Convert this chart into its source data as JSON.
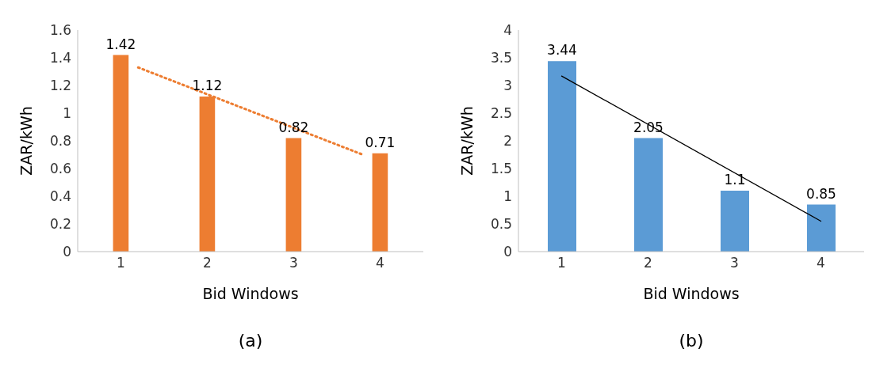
{
  "chart_data": [
    {
      "type": "bar",
      "x": [
        1,
        2,
        3,
        4
      ],
      "xlim": [
        0.5,
        4.5
      ],
      "xticks": [
        1,
        2,
        3,
        4
      ],
      "xlabel": "Bid Windows",
      "ylabel": "ZAR/kWh",
      "ylim": [
        0,
        1.6
      ],
      "yticks": [
        0,
        0.2,
        0.4,
        0.6,
        0.8,
        1,
        1.2,
        1.4,
        1.6
      ],
      "annotations": [
        "(a)"
      ],
      "series": [
        {
          "color": "#ed7d31",
          "values": [
            1.42,
            1.12,
            0.82,
            0.71
          ],
          "value_labels": [
            "1.42",
            "1.12",
            "0.82",
            "0.71"
          ]
        },
        {
          "type": "line",
          "color": "#ed7d31",
          "x": [
            1.2,
            3.8
          ],
          "values": [
            1.33,
            0.7
          ],
          "line_style": "dotted",
          "marker": "none"
        }
      ]
    },
    {
      "type": "bar",
      "x": [
        1,
        2,
        3,
        4
      ],
      "xlim": [
        0.5,
        4.5
      ],
      "xticks": [
        1,
        2,
        3,
        4
      ],
      "xlabel": "Bid Windows",
      "ylabel": "ZAR/kWh",
      "ylim": [
        0,
        4
      ],
      "yticks": [
        0,
        0.5,
        1,
        1.5,
        2,
        2.5,
        3,
        3.5,
        4
      ],
      "annotations": [
        "(b)"
      ],
      "series": [
        {
          "color": "#5b9bd5",
          "values": [
            3.44,
            2.05,
            1.1,
            0.85
          ],
          "value_labels": [
            "3.44",
            "2.05",
            "1.1",
            "0.85"
          ]
        },
        {
          "type": "line",
          "color": "#000000",
          "x": [
            1,
            4
          ],
          "values": [
            3.17,
            0.55
          ],
          "line_style": "solid",
          "marker": "none"
        }
      ]
    }
  ]
}
